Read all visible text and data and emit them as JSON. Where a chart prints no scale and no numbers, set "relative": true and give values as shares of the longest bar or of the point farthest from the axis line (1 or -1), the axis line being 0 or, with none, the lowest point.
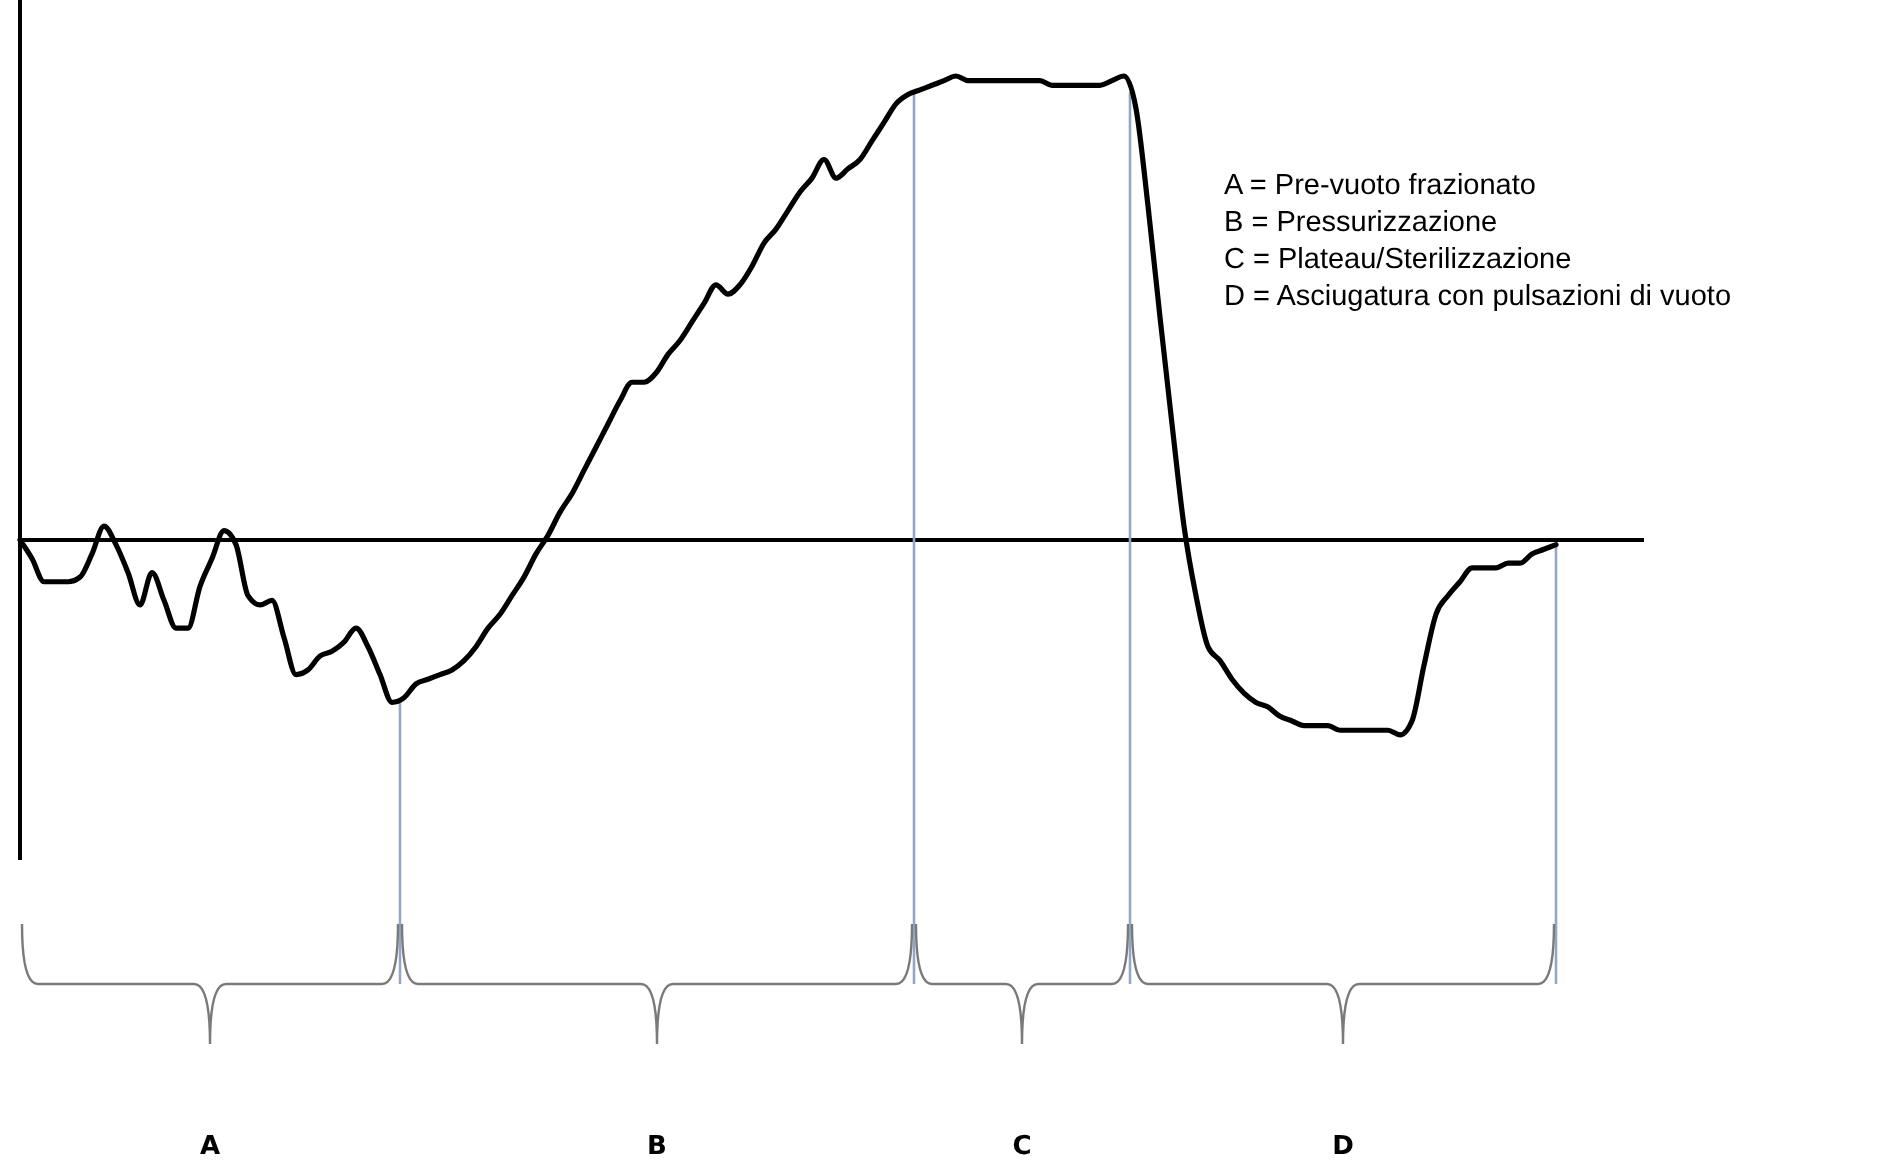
{
  "chart_data": {
    "type": "line",
    "relative": true,
    "color": "#000000",
    "categories": [
      null,
      null,
      null,
      null,
      null,
      null,
      null,
      null,
      null,
      null,
      null,
      null,
      null,
      null,
      null,
      null,
      null,
      null,
      null,
      null,
      null,
      null,
      null,
      null,
      null,
      null,
      null,
      null,
      null,
      null,
      null,
      null,
      null,
      null,
      null,
      null,
      null,
      null,
      null,
      null,
      null,
      null,
      null,
      null,
      null,
      null,
      null,
      null,
      null,
      null,
      null,
      null,
      null,
      null,
      null,
      null,
      null,
      null,
      null,
      null,
      null,
      null,
      null,
      null,
      null,
      null,
      null,
      null,
      null,
      null,
      null,
      null,
      null,
      null,
      null,
      null,
      null,
      null,
      null,
      null,
      null,
      null,
      null,
      null,
      null,
      null,
      null,
      null,
      null,
      null,
      null,
      null,
      null,
      null,
      null,
      null,
      null,
      null,
      null,
      null,
      null,
      null,
      null,
      null,
      null,
      null,
      null,
      null,
      null,
      null,
      null,
      null,
      null,
      null,
      null,
      null,
      null,
      null,
      null,
      null,
      null,
      null,
      null,
      null,
      null,
      null,
      null,
      null,
      null
    ],
    "values": [
      0,
      -0.04,
      -0.09,
      -0.09,
      -0.09,
      -0.08,
      -0.03,
      0.03,
      -0.01,
      -0.07,
      -0.14,
      -0.07,
      -0.13,
      -0.19,
      -0.19,
      -0.1,
      -0.04,
      0.02,
      -0.01,
      -0.12,
      -0.14,
      -0.13,
      -0.21,
      -0.29,
      -0.28,
      -0.25,
      -0.24,
      -0.22,
      -0.19,
      -0.23,
      -0.29,
      -0.35,
      -0.34,
      -0.31,
      -0.3,
      -0.29,
      -0.28,
      -0.26,
      -0.23,
      -0.19,
      -0.16,
      -0.12,
      -0.08,
      -0.03,
      0.01,
      0.06,
      0.1,
      0.15,
      0.2,
      0.25,
      0.3,
      0.34,
      0.34,
      0.36,
      0.4,
      0.43,
      0.47,
      0.51,
      0.55,
      0.53,
      0.55,
      0.59,
      0.64,
      0.67,
      0.71,
      0.75,
      0.78,
      0.82,
      0.78,
      0.8,
      0.82,
      0.86,
      0.9,
      0.94,
      0.96,
      0.97,
      0.98,
      0.99,
      1.0,
      0.99,
      0.99,
      0.99,
      0.99,
      0.99,
      0.99,
      0.99,
      0.98,
      0.98,
      0.98,
      0.98,
      0.98,
      0.99,
      1.0,
      0.93,
      0.72,
      0.48,
      0.25,
      0.03,
      -0.12,
      -0.23,
      -0.26,
      -0.3,
      -0.33,
      -0.35,
      -0.36,
      -0.38,
      -0.39,
      -0.4,
      -0.4,
      -0.4,
      -0.41,
      -0.41,
      -0.41,
      -0.41,
      -0.41,
      -0.42,
      -0.39,
      -0.27,
      -0.16,
      -0.12,
      -0.09,
      -0.06,
      -0.06,
      -0.06,
      -0.05,
      -0.05,
      -0.03,
      -0.02,
      -0.01
    ],
    "annotations": [
      "A = Pre-vuoto frazionato",
      "B = Pressurizzazione",
      "C = Plateau/Sterilizzazione",
      "D = Asciugatura con pulsazioni di vuoto",
      "A",
      "B",
      "C",
      "D"
    ]
  }
}
